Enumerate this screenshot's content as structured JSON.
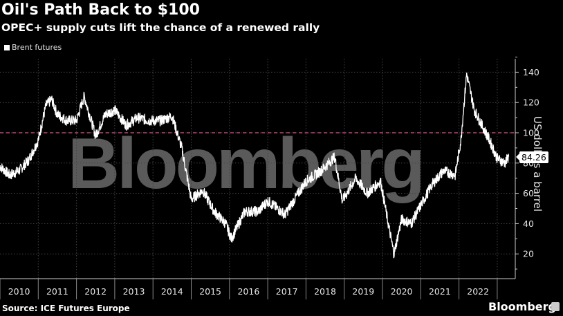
{
  "header": {
    "title": "Oil's Path Back to $100",
    "subtitle": "OPEC+ supply cuts lift the chance of a renewed rally"
  },
  "legend": {
    "items": [
      {
        "label": "Brent futures",
        "color": "#ffffff"
      }
    ]
  },
  "footer": {
    "source": "Source: ICE Futures Europe",
    "brand": "Bloomberg"
  },
  "watermark": "Bloomberg",
  "colors": {
    "background": "#000000",
    "line": "#ffffff",
    "reference_line": "#c0457a",
    "grid": "#444444",
    "watermark": "#5a5a5a"
  },
  "chart_data": {
    "type": "line",
    "title": "Oil's Path Back to $100",
    "subtitle": "OPEC+ supply cuts lift the chance of a renewed rally",
    "xlabel": "",
    "ylabel": "US dollars a barrel",
    "ylim": [
      0,
      150
    ],
    "yticks": [
      20,
      40,
      60,
      80,
      100,
      120,
      140
    ],
    "xticks": [
      "2010",
      "2011",
      "2012",
      "2013",
      "2014",
      "2015",
      "2016",
      "2017",
      "2018",
      "2019",
      "2020",
      "2021",
      "2022"
    ],
    "grid": true,
    "legend_position": "top-left",
    "reference_line": {
      "y": 100,
      "style": "dashed",
      "color": "#c0457a"
    },
    "last_value_label": "84.26",
    "series": [
      {
        "name": "Brent futures",
        "x": [
          2010.0,
          2010.25,
          2010.5,
          2010.75,
          2011.0,
          2011.2,
          2011.35,
          2011.5,
          2011.75,
          2012.0,
          2012.2,
          2012.5,
          2012.75,
          2013.0,
          2013.3,
          2013.6,
          2013.9,
          2014.2,
          2014.5,
          2014.75,
          2015.0,
          2015.3,
          2015.6,
          2015.9,
          2016.05,
          2016.4,
          2016.75,
          2017.0,
          2017.45,
          2017.75,
          2018.0,
          2018.4,
          2018.75,
          2018.95,
          2019.3,
          2019.6,
          2019.95,
          2020.15,
          2020.3,
          2020.5,
          2020.75,
          2021.0,
          2021.3,
          2021.6,
          2021.9,
          2022.05,
          2022.2,
          2022.4,
          2022.6,
          2022.8,
          2023.0,
          2023.2,
          2023.3
        ],
        "values": [
          78,
          72,
          75,
          82,
          95,
          118,
          122,
          112,
          108,
          108,
          124,
          98,
          112,
          115,
          105,
          110,
          108,
          108,
          111,
          90,
          56,
          62,
          48,
          40,
          30,
          48,
          48,
          55,
          46,
          58,
          68,
          75,
          84,
          55,
          70,
          60,
          68,
          40,
          20,
          43,
          40,
          52,
          66,
          75,
          72,
          95,
          139,
          115,
          105,
          95,
          83,
          80,
          84.26
        ]
      }
    ]
  }
}
